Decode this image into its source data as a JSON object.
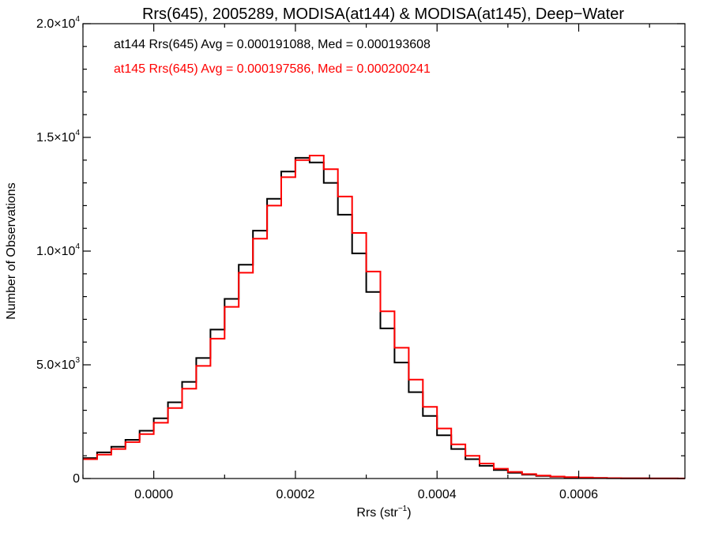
{
  "chart_data": {
    "type": "line",
    "style": "step-histogram",
    "title": "Rrs(645), 2005289, MODISA(at144) & MODISA(at145), Deep−Water",
    "xlabel_main": "Rrs (str",
    "xlabel_sup": "−1",
    "xlabel_end": ")",
    "ylabel": "Number of Observations",
    "xlim": [
      -0.0001,
      0.00075
    ],
    "ylim": [
      0,
      20000
    ],
    "x_ticks": [
      {
        "value": 0.0,
        "label": "0.0000"
      },
      {
        "value": 0.0002,
        "label": "0.0002"
      },
      {
        "value": 0.0004,
        "label": "0.0004"
      },
      {
        "value": 0.0006,
        "label": "0.0006"
      }
    ],
    "y_ticks": [
      {
        "value": 0,
        "label": "0",
        "sup": ""
      },
      {
        "value": 5000,
        "label": "5.0×10",
        "sup": "3"
      },
      {
        "value": 10000,
        "label": "1.0×10",
        "sup": "4"
      },
      {
        "value": 15000,
        "label": "1.5×10",
        "sup": "4"
      },
      {
        "value": 20000,
        "label": "2.0×10",
        "sup": "4"
      }
    ],
    "annotations": [
      {
        "text": "at144 Rrs(645) Avg = 0.000191088, Med = 0.000193608",
        "color": "#000000"
      },
      {
        "text": "at145 Rrs(645) Avg = 0.000197586, Med = 0.000200241",
        "color": "#ff0000"
      }
    ],
    "series": [
      {
        "label": "at144",
        "color": "#000000",
        "points": [
          [
            -0.0001,
            900
          ],
          [
            -8e-05,
            1150
          ],
          [
            -6e-05,
            1400
          ],
          [
            -4e-05,
            1700
          ],
          [
            -2e-05,
            2100
          ],
          [
            0.0,
            2650
          ],
          [
            2e-05,
            3350
          ],
          [
            4e-05,
            4250
          ],
          [
            6e-05,
            5300
          ],
          [
            8e-05,
            6550
          ],
          [
            0.0001,
            7900
          ],
          [
            0.00012,
            9400
          ],
          [
            0.00014,
            10900
          ],
          [
            0.00016,
            12300
          ],
          [
            0.00018,
            13500
          ],
          [
            0.0002,
            14100
          ],
          [
            0.00022,
            13900
          ],
          [
            0.00024,
            13000
          ],
          [
            0.00026,
            11600
          ],
          [
            0.00028,
            9900
          ],
          [
            0.0003,
            8200
          ],
          [
            0.00032,
            6600
          ],
          [
            0.00034,
            5100
          ],
          [
            0.00036,
            3800
          ],
          [
            0.00038,
            2750
          ],
          [
            0.0004,
            1900
          ],
          [
            0.00042,
            1300
          ],
          [
            0.00044,
            850
          ],
          [
            0.00046,
            560
          ],
          [
            0.00048,
            370
          ],
          [
            0.0005,
            250
          ],
          [
            0.00052,
            170
          ],
          [
            0.00054,
            110
          ],
          [
            0.00056,
            75
          ],
          [
            0.00058,
            50
          ],
          [
            0.0006,
            35
          ],
          [
            0.00062,
            22
          ],
          [
            0.00064,
            14
          ],
          [
            0.00066,
            9
          ],
          [
            0.00068,
            6
          ],
          [
            0.0007,
            4
          ],
          [
            0.00072,
            2
          ],
          [
            0.00074,
            1
          ]
        ]
      },
      {
        "label": "at145",
        "color": "#ff0000",
        "points": [
          [
            -0.0001,
            850
          ],
          [
            -8e-05,
            1050
          ],
          [
            -6e-05,
            1300
          ],
          [
            -4e-05,
            1600
          ],
          [
            -2e-05,
            1950
          ],
          [
            0.0,
            2450
          ],
          [
            2e-05,
            3100
          ],
          [
            4e-05,
            3950
          ],
          [
            6e-05,
            4950
          ],
          [
            8e-05,
            6150
          ],
          [
            0.0001,
            7550
          ],
          [
            0.00012,
            9050
          ],
          [
            0.00014,
            10550
          ],
          [
            0.00016,
            12000
          ],
          [
            0.00018,
            13250
          ],
          [
            0.0002,
            14000
          ],
          [
            0.00022,
            14200
          ],
          [
            0.00024,
            13600
          ],
          [
            0.00026,
            12400
          ],
          [
            0.00028,
            10800
          ],
          [
            0.0003,
            9100
          ],
          [
            0.00032,
            7350
          ],
          [
            0.00034,
            5750
          ],
          [
            0.00036,
            4350
          ],
          [
            0.00038,
            3150
          ],
          [
            0.0004,
            2200
          ],
          [
            0.00042,
            1500
          ],
          [
            0.00044,
            1000
          ],
          [
            0.00046,
            660
          ],
          [
            0.00048,
            430
          ],
          [
            0.0005,
            290
          ],
          [
            0.00052,
            195
          ],
          [
            0.00054,
            130
          ],
          [
            0.00056,
            88
          ],
          [
            0.00058,
            60
          ],
          [
            0.0006,
            40
          ],
          [
            0.00062,
            26
          ],
          [
            0.00064,
            17
          ],
          [
            0.00066,
            11
          ],
          [
            0.00068,
            7
          ],
          [
            0.0007,
            5
          ],
          [
            0.00072,
            3
          ],
          [
            0.00074,
            2
          ]
        ]
      }
    ]
  }
}
